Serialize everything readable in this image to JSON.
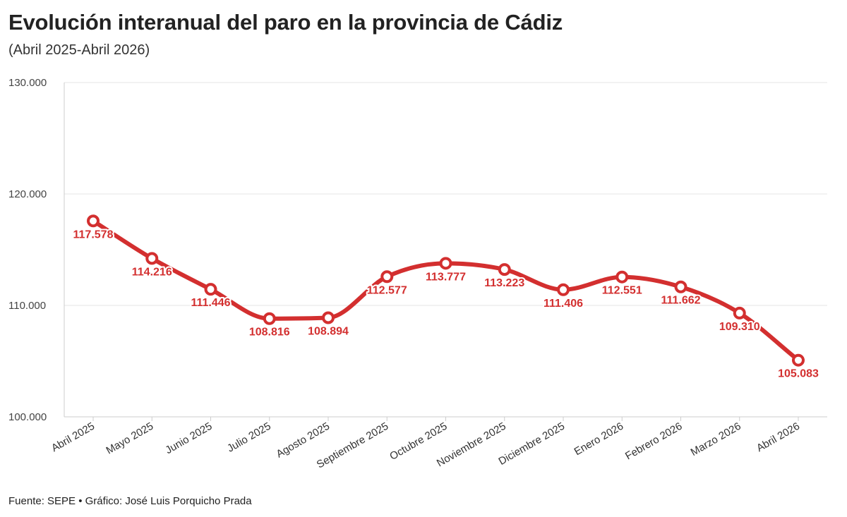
{
  "title": "Evolución interanual del paro en la provincia de Cádiz",
  "subtitle": "(Abril 2025-Abril 2026)",
  "source": "Fuente: SEPE • Gráfico: José Luis Porquicho Prada",
  "colors": {
    "line": "#d32f2f",
    "grid": "#e6e6e6",
    "axis": "#cccccc"
  },
  "chart_data": {
    "type": "line",
    "title": "Evolución interanual del paro en la provincia de Cádiz",
    "subtitle": "(Abril 2025-Abril 2026)",
    "xlabel": "",
    "ylabel": "",
    "ylim": [
      100000,
      130000
    ],
    "grid": true,
    "yticks": [
      100000,
      110000,
      120000,
      130000
    ],
    "ytick_labels": [
      "100.000",
      "110.000",
      "120.000",
      "130.000"
    ],
    "categories": [
      "Abril 2025",
      "Mayo 2025",
      "Junio 2025",
      "Julio 2025",
      "Agosto 2025",
      "Septiembre 2025",
      "Octubre 2025",
      "Noviembre 2025",
      "Diciembre 2025",
      "Enero 2026",
      "Febrero 2026",
      "Marzo 2026",
      "Abril 2026"
    ],
    "values": [
      117578,
      114216,
      111446,
      108816,
      108894,
      112577,
      113777,
      113223,
      111406,
      112551,
      111662,
      109310,
      105083
    ],
    "value_labels": [
      "117.578",
      "114.216",
      "111.446",
      "108.816",
      "108.894",
      "112.577",
      "113.777",
      "113.223",
      "111.406",
      "112.551",
      "111.662",
      "109.310",
      "105.083"
    ]
  }
}
